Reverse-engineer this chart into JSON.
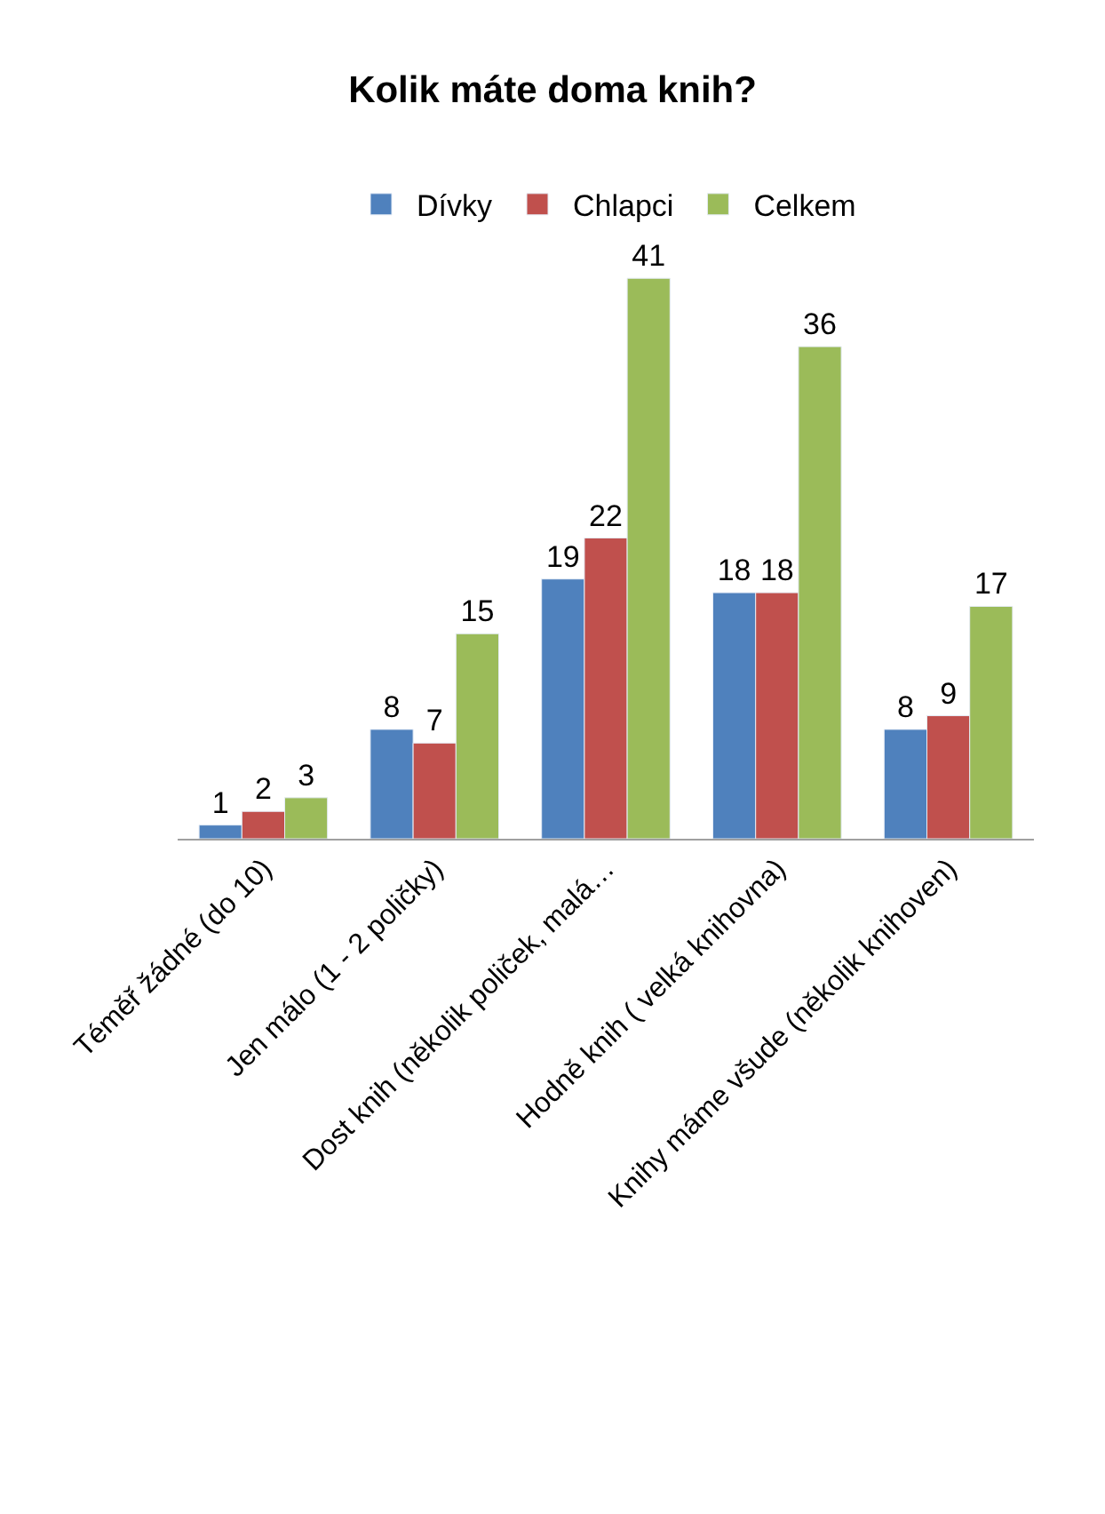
{
  "chart_data": {
    "type": "bar",
    "title": "Kolik máte doma knih?",
    "categories": [
      "Téměř žádné (do 10)",
      "Jen málo (1 - 2 poličky)",
      "Dost knih (několik poliček, malá…",
      "Hodně knih ( velká knihovna)",
      "Knihy máme všude (několik knihoven)"
    ],
    "series": [
      {
        "name": "Dívky",
        "color": "#4f81bd",
        "values": [
          1,
          8,
          19,
          18,
          8
        ]
      },
      {
        "name": "Chlapci",
        "color": "#c0504d",
        "values": [
          2,
          7,
          22,
          18,
          9
        ]
      },
      {
        "name": "Celkem",
        "color": "#9bbb59",
        "values": [
          3,
          15,
          41,
          36,
          17
        ]
      }
    ],
    "data_labels": true,
    "legend": "top"
  }
}
